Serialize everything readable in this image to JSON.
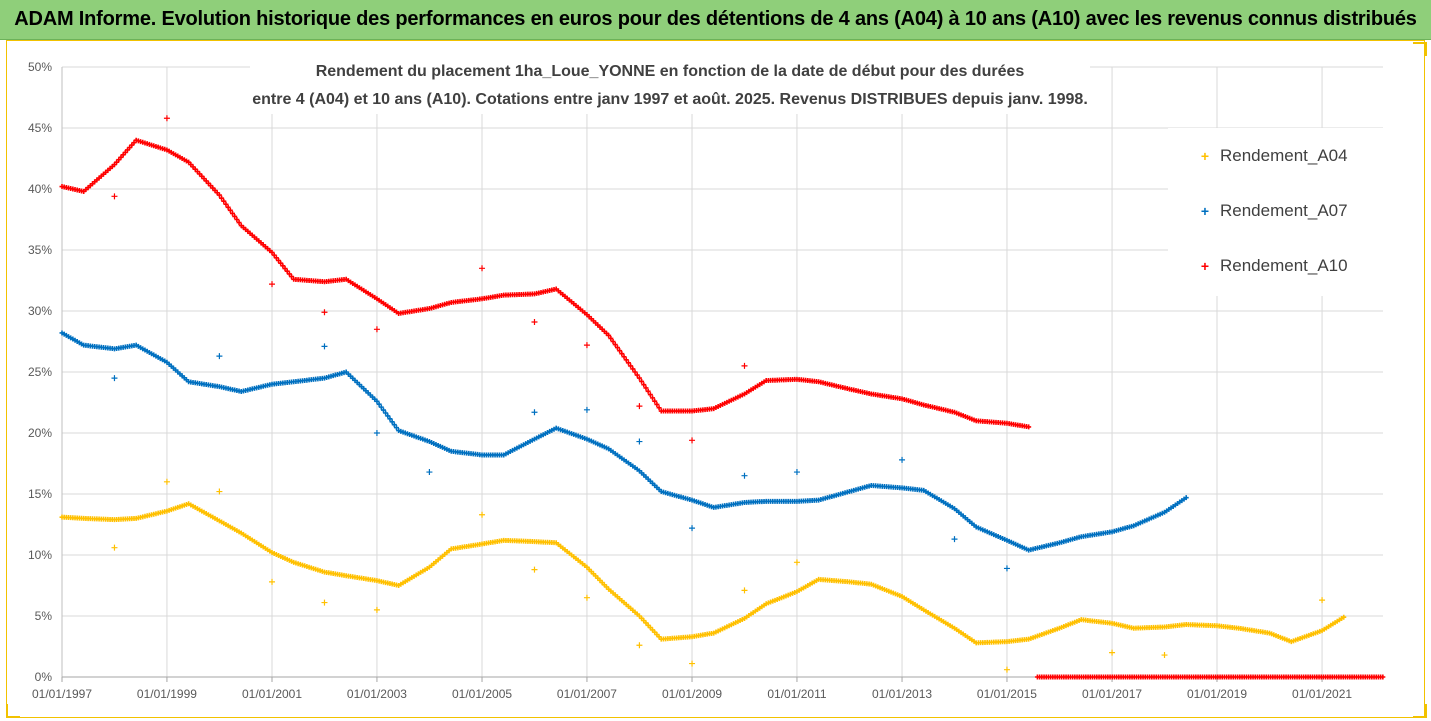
{
  "banner": {
    "title": "ADAM Informe. Evolution historique des performances en euros pour des détentions de 4 ans (A04) à 10 ans (A10) avec les revenus connus distribués"
  },
  "colors": {
    "banner_bg": "#8fcf7a",
    "frame": "#f2c200",
    "A04": "#ffc000",
    "A07": "#0070c0",
    "A10": "#ff0000"
  },
  "chart_data": {
    "type": "scatter",
    "title_lines": [
      "Rendement du placement 1ha_Loue_YONNE en fonction de la date de début pour des durées",
      "entre 4 (A04) et 10 ans (A10). Cotations entre janv 1997 et août. 2025. Revenus DISTRIBUES depuis janv. 1998."
    ],
    "x_axis": {
      "type": "date",
      "min": "1997-01-01",
      "max": "2022-03-01",
      "tick_labels": [
        "01/01/1997",
        "01/01/1999",
        "01/01/2001",
        "01/01/2003",
        "01/01/2005",
        "01/01/2007",
        "01/01/2009",
        "01/01/2011",
        "01/01/2013",
        "01/01/2015",
        "01/01/2017",
        "01/01/2019",
        "01/01/2021"
      ],
      "tick_dates": [
        "1997-01-01",
        "1999-01-01",
        "2001-01-01",
        "2003-01-01",
        "2005-01-01",
        "2007-01-01",
        "2009-01-01",
        "2011-01-01",
        "2013-01-01",
        "2015-01-01",
        "2017-01-01",
        "2019-01-01",
        "2021-01-01"
      ]
    },
    "y_axis": {
      "min": 0,
      "max": 50,
      "unit": "%",
      "tick_labels": [
        "0%",
        "5%",
        "10%",
        "15%",
        "20%",
        "25%",
        "30%",
        "35%",
        "40%",
        "45%",
        "50%"
      ]
    },
    "grid": true,
    "legend_position": "right",
    "series": [
      {
        "name": "Rendement_A04",
        "color_key": "A04",
        "marker": "+",
        "points": [
          [
            "1997-01-01",
            13.1
          ],
          [
            "1997-06-01",
            13.0
          ],
          [
            "1998-01-01",
            12.9
          ],
          [
            "1998-06-01",
            13.0
          ],
          [
            "1999-01-01",
            13.6
          ],
          [
            "1999-06-01",
            14.2
          ],
          [
            "2000-01-01",
            12.8
          ],
          [
            "2000-06-01",
            11.8
          ],
          [
            "2001-01-01",
            10.2
          ],
          [
            "2001-06-01",
            9.4
          ],
          [
            "2002-01-01",
            8.6
          ],
          [
            "2002-06-01",
            8.3
          ],
          [
            "2003-01-01",
            7.9
          ],
          [
            "2003-06-01",
            7.5
          ],
          [
            "2004-01-01",
            9.0
          ],
          [
            "2004-06-01",
            10.5
          ],
          [
            "2005-01-01",
            10.9
          ],
          [
            "2005-06-01",
            11.2
          ],
          [
            "2006-01-01",
            11.1
          ],
          [
            "2006-06-01",
            11.0
          ],
          [
            "2007-01-01",
            9.0
          ],
          [
            "2007-06-01",
            7.2
          ],
          [
            "2008-01-01",
            5.0
          ],
          [
            "2008-06-01",
            3.1
          ],
          [
            "2009-01-01",
            3.3
          ],
          [
            "2009-06-01",
            3.6
          ],
          [
            "2010-01-01",
            4.8
          ],
          [
            "2010-06-01",
            6.0
          ],
          [
            "2011-01-01",
            7.0
          ],
          [
            "2011-06-01",
            8.0
          ],
          [
            "2012-01-01",
            7.8
          ],
          [
            "2012-06-01",
            7.6
          ],
          [
            "2013-01-01",
            6.6
          ],
          [
            "2013-06-01",
            5.5
          ],
          [
            "2014-01-01",
            4.0
          ],
          [
            "2014-06-01",
            2.8
          ],
          [
            "2015-01-01",
            2.9
          ],
          [
            "2015-06-01",
            3.1
          ],
          [
            "2016-01-01",
            4.0
          ],
          [
            "2016-06-01",
            4.7
          ],
          [
            "2017-01-01",
            4.4
          ],
          [
            "2017-06-01",
            4.0
          ],
          [
            "2018-01-01",
            4.1
          ],
          [
            "2018-06-01",
            4.3
          ],
          [
            "2019-01-01",
            4.2
          ],
          [
            "2019-06-01",
            4.0
          ],
          [
            "2020-01-01",
            3.6
          ],
          [
            "2020-06-01",
            2.9
          ],
          [
            "2021-01-01",
            3.8
          ],
          [
            "2021-06-01",
            4.9
          ]
        ],
        "outliers": [
          [
            "1998-01-01",
            10.6
          ],
          [
            "1999-01-01",
            16.0
          ],
          [
            "2000-01-01",
            15.2
          ],
          [
            "2001-01-01",
            7.8
          ],
          [
            "2002-01-01",
            6.1
          ],
          [
            "2003-01-01",
            5.5
          ],
          [
            "2005-01-01",
            13.3
          ],
          [
            "2006-01-01",
            8.8
          ],
          [
            "2007-01-01",
            6.5
          ],
          [
            "2008-01-01",
            2.6
          ],
          [
            "2009-01-01",
            1.1
          ],
          [
            "2010-01-01",
            7.1
          ],
          [
            "2011-01-01",
            9.4
          ],
          [
            "2015-01-01",
            0.6
          ],
          [
            "2017-01-01",
            2.0
          ],
          [
            "2018-01-01",
            1.8
          ],
          [
            "2021-01-01",
            6.3
          ]
        ]
      },
      {
        "name": "Rendement_A07",
        "color_key": "A07",
        "marker": "+",
        "points": [
          [
            "1997-01-01",
            28.2
          ],
          [
            "1997-06-01",
            27.2
          ],
          [
            "1998-01-01",
            26.9
          ],
          [
            "1998-06-01",
            27.2
          ],
          [
            "1999-01-01",
            25.8
          ],
          [
            "1999-06-01",
            24.2
          ],
          [
            "2000-01-01",
            23.8
          ],
          [
            "2000-06-01",
            23.4
          ],
          [
            "2001-01-01",
            24.0
          ],
          [
            "2001-06-01",
            24.2
          ],
          [
            "2002-01-01",
            24.5
          ],
          [
            "2002-06-01",
            25.0
          ],
          [
            "2003-01-01",
            22.6
          ],
          [
            "2003-06-01",
            20.2
          ],
          [
            "2004-01-01",
            19.3
          ],
          [
            "2004-06-01",
            18.5
          ],
          [
            "2005-01-01",
            18.2
          ],
          [
            "2005-06-01",
            18.2
          ],
          [
            "2006-01-01",
            19.5
          ],
          [
            "2006-06-01",
            20.4
          ],
          [
            "2007-01-01",
            19.5
          ],
          [
            "2007-06-01",
            18.7
          ],
          [
            "2008-01-01",
            16.9
          ],
          [
            "2008-06-01",
            15.2
          ],
          [
            "2009-01-01",
            14.5
          ],
          [
            "2009-06-01",
            13.9
          ],
          [
            "2010-01-01",
            14.3
          ],
          [
            "2010-06-01",
            14.4
          ],
          [
            "2011-01-01",
            14.4
          ],
          [
            "2011-06-01",
            14.5
          ],
          [
            "2012-01-01",
            15.2
          ],
          [
            "2012-06-01",
            15.7
          ],
          [
            "2013-01-01",
            15.5
          ],
          [
            "2013-06-01",
            15.3
          ],
          [
            "2014-01-01",
            13.8
          ],
          [
            "2014-06-01",
            12.3
          ],
          [
            "2015-01-01",
            11.2
          ],
          [
            "2015-06-01",
            10.4
          ],
          [
            "2016-01-01",
            11.0
          ],
          [
            "2016-06-01",
            11.5
          ],
          [
            "2017-01-01",
            11.9
          ],
          [
            "2017-06-01",
            12.4
          ],
          [
            "2018-01-01",
            13.5
          ],
          [
            "2018-06-01",
            14.7
          ]
        ],
        "outliers": [
          [
            "1998-01-01",
            24.5
          ],
          [
            "2000-01-01",
            26.3
          ],
          [
            "2002-01-01",
            27.1
          ],
          [
            "2003-01-01",
            20.0
          ],
          [
            "2004-01-01",
            16.8
          ],
          [
            "2006-01-01",
            21.7
          ],
          [
            "2007-01-01",
            21.9
          ],
          [
            "2008-01-01",
            19.3
          ],
          [
            "2009-01-01",
            12.2
          ],
          [
            "2010-01-01",
            16.5
          ],
          [
            "2011-01-01",
            16.8
          ],
          [
            "2013-01-01",
            17.8
          ],
          [
            "2014-01-01",
            11.3
          ],
          [
            "2015-01-01",
            8.9
          ]
        ]
      },
      {
        "name": "Rendement_A10",
        "color_key": "A10",
        "marker": "+",
        "points": [
          [
            "1997-01-01",
            40.2
          ],
          [
            "1997-06-01",
            39.8
          ],
          [
            "1998-01-01",
            42.0
          ],
          [
            "1998-06-01",
            44.0
          ],
          [
            "1999-01-01",
            43.2
          ],
          [
            "1999-06-01",
            42.2
          ],
          [
            "2000-01-01",
            39.5
          ],
          [
            "2000-06-01",
            37.0
          ],
          [
            "2001-01-01",
            34.8
          ],
          [
            "2001-06-01",
            32.6
          ],
          [
            "2002-01-01",
            32.4
          ],
          [
            "2002-06-01",
            32.6
          ],
          [
            "2003-01-01",
            31.0
          ],
          [
            "2003-06-01",
            29.8
          ],
          [
            "2004-01-01",
            30.2
          ],
          [
            "2004-06-01",
            30.7
          ],
          [
            "2005-01-01",
            31.0
          ],
          [
            "2005-06-01",
            31.3
          ],
          [
            "2006-01-01",
            31.4
          ],
          [
            "2006-06-01",
            31.8
          ],
          [
            "2007-01-01",
            29.7
          ],
          [
            "2007-06-01",
            28.0
          ],
          [
            "2008-01-01",
            24.5
          ],
          [
            "2008-06-01",
            21.8
          ],
          [
            "2009-01-01",
            21.8
          ],
          [
            "2009-06-01",
            22.0
          ],
          [
            "2010-01-01",
            23.2
          ],
          [
            "2010-06-01",
            24.3
          ],
          [
            "2011-01-01",
            24.4
          ],
          [
            "2011-06-01",
            24.2
          ],
          [
            "2012-01-01",
            23.6
          ],
          [
            "2012-06-01",
            23.2
          ],
          [
            "2013-01-01",
            22.8
          ],
          [
            "2013-06-01",
            22.3
          ],
          [
            "2014-01-01",
            21.7
          ],
          [
            "2014-06-01",
            21.0
          ],
          [
            "2015-01-01",
            20.8
          ],
          [
            "2015-06-01",
            20.5
          ]
        ],
        "outliers": [
          [
            "1998-01-01",
            39.4
          ],
          [
            "1999-01-01",
            45.8
          ],
          [
            "2001-01-01",
            32.2
          ],
          [
            "2002-01-01",
            29.9
          ],
          [
            "2003-01-01",
            28.5
          ],
          [
            "2005-01-01",
            33.5
          ],
          [
            "2006-01-01",
            29.1
          ],
          [
            "2007-01-01",
            27.2
          ],
          [
            "2008-01-01",
            22.2
          ],
          [
            "2009-01-01",
            19.4
          ],
          [
            "2010-01-01",
            25.5
          ]
        ],
        "zero_segment": {
          "from": "2015-08-01",
          "to": "2022-03-01",
          "value": 0
        }
      }
    ]
  }
}
